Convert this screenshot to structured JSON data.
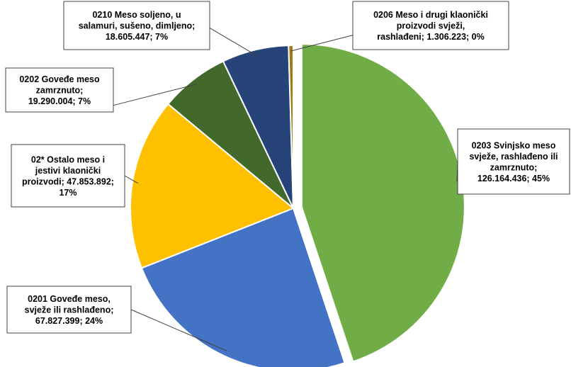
{
  "chart_data": {
    "type": "pie",
    "title": "",
    "slices": [
      {
        "code": "0203",
        "category": "Svinjsko meso svježe, rashlađeno ili zamrznuto",
        "value": 126164436,
        "value_label": "126.164.436",
        "percent_label": "45%",
        "label_lines": [
          "0203 Svinjsko meso",
          "svježe, rashlađeno ili",
          "zamrznuto;",
          "126.164.436; 45%"
        ],
        "color": "#70ad47",
        "exploded": true
      },
      {
        "code": "0201",
        "category": "Goveđe meso, svježe ili rashlađeno",
        "value": 67827399,
        "value_label": "67.827.399",
        "percent_label": "24%",
        "label_lines": [
          "0201 Goveđe meso,",
          "svježe ili rashlađeno;",
          "67.827.399; 24%"
        ],
        "color": "#4472c4",
        "exploded": false
      },
      {
        "code": "02*",
        "category": "Ostalo meso i jestivi klaonički proizvodi",
        "value": 47853892,
        "value_label": "47.853.892",
        "percent_label": "17%",
        "label_lines": [
          "02* Ostalo meso i",
          "jestivi klaonički",
          "proizvodi; 47.853.892;",
          "17%"
        ],
        "color": "#ffc000",
        "exploded": false
      },
      {
        "code": "0202",
        "category": "Goveđe meso zamrznuto",
        "value": 19290004,
        "value_label": "19.290.004",
        "percent_label": "7%",
        "label_lines": [
          "0202 Goveđe meso",
          "zamrznuto;",
          "19.290.004; 7%"
        ],
        "color": "#43682b",
        "exploded": false
      },
      {
        "code": "0210",
        "category": "Meso soljeno, u salamuri, sušeno, dimljeno",
        "value": 18605447,
        "value_label": "18.605.447",
        "percent_label": "7%",
        "label_lines": [
          "0210 Meso soljeno, u",
          "salamuri, sušeno, dimljeno;",
          "18.605.447; 7%"
        ],
        "color": "#264478",
        "exploded": false
      },
      {
        "code": "0206",
        "category": "Meso i drugi klaonički proizvodi svježi, rashlađeni",
        "value": 1306223,
        "value_label": "1.306.223",
        "percent_label": "0%",
        "label_lines": [
          "0206 Meso i drugi klaonički",
          "proizvodi svježi,",
          "rashlađeni; 1.306.223; 0%"
        ],
        "color": "#9e7b16",
        "exploded": false
      }
    ],
    "legend": "none",
    "data_labels": "callouts with leader lines"
  }
}
